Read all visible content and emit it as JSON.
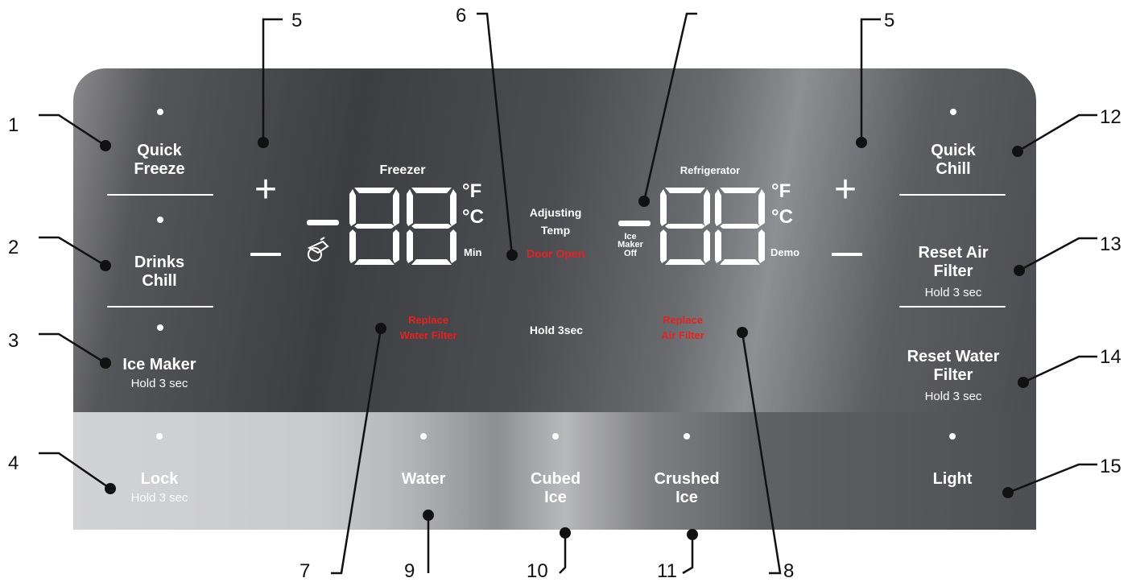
{
  "panel": {
    "left_column": {
      "quick_freeze": "Quick\nFreeze",
      "drinks_chill": "Drinks\nChill",
      "ice_maker": "Ice Maker",
      "ice_maker_hold": "Hold 3 sec"
    },
    "right_column": {
      "quick_chill": "Quick\nChill",
      "reset_air_filter": "Reset Air\nFilter",
      "reset_air_filter_hold": "Hold 3 sec",
      "reset_water_filter": "Reset Water\nFilter",
      "reset_water_filter_hold": "Hold 3 sec"
    },
    "freezer_display": {
      "label": "Freezer",
      "digits": "88",
      "unit_f": "°F",
      "unit_c": "°C",
      "min": "Min",
      "plus": "+",
      "minus": "—"
    },
    "refrigerator_display": {
      "label": "Refrigerator",
      "digits": "88",
      "unit_f": "°F",
      "unit_c": "°C",
      "demo": "Demo",
      "ice_maker_off": "Ice\nMaker\nOff",
      "plus": "+",
      "minus": "—"
    },
    "center": {
      "adjusting_temp": "Adjusting\nTemp",
      "door_open": "Door Open",
      "replace_water_filter": "Replace\nWater Filter",
      "hold_3sec": "Hold 3sec",
      "replace_air_filter": "Replace\nAir Filter"
    },
    "bottom_row": {
      "lock": "Lock",
      "lock_hold": "Hold 3 sec",
      "water": "Water",
      "cubed_ice": "Cubed\nIce",
      "crushed_ice": "Crushed\nIce",
      "light": "Light"
    }
  },
  "callouts": {
    "c1": "1",
    "c2": "2",
    "c3": "3",
    "c4": "4",
    "c5_left": "5",
    "c5_right": "5",
    "c6": "6",
    "c7": "7",
    "c8": "8",
    "c9": "9",
    "c10": "10",
    "c11": "11",
    "c12": "12",
    "c13": "13",
    "c14": "14",
    "c15": "15"
  },
  "colors": {
    "alert_red": "#e32222",
    "panel_dark": "#3d3e42",
    "indicator_white": "#ffffff"
  }
}
